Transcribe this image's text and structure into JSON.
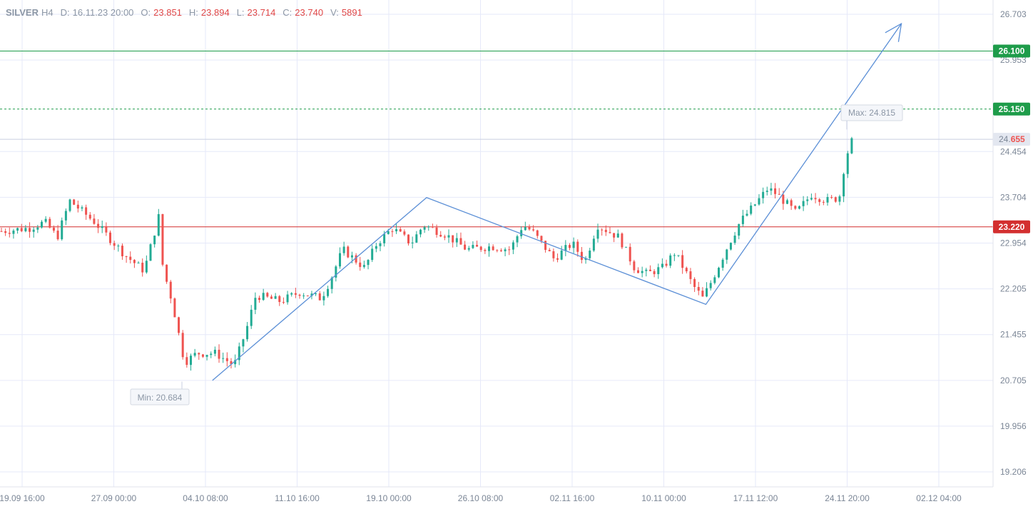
{
  "header": {
    "symbol": "SILVER",
    "timeframe": "H4",
    "date_label": "D:",
    "date": "16.11.23 20:00",
    "open_label": "O:",
    "open": "23.851",
    "high_label": "H:",
    "high": "23.894",
    "low_label": "L:",
    "low": "23.714",
    "close_label": "C:",
    "close": "23.740",
    "volume_label": "V:",
    "volume": "5891"
  },
  "colors": {
    "up": "#22ab94",
    "down": "#ef5350",
    "grid": "#e6e9f9",
    "axis_text": "#7b8696",
    "green_level": "#1e9c4a",
    "red_level": "#d32f2f",
    "drawing": "#5b8fd6"
  },
  "chart_data": {
    "type": "candlestick",
    "timeframe": "H4",
    "y_axis": {
      "range": [
        19.05,
        26.95
      ],
      "ticks": [
        "26.703",
        "25.953",
        "24.454",
        "23.704",
        "22.954",
        "22.205",
        "21.455",
        "20.705",
        "19.956",
        "19.206"
      ]
    },
    "x_axis": {
      "ticks": [
        "19.09 16:00",
        "27.09 00:00",
        "04.10 08:00",
        "11.10 16:00",
        "19.10 00:00",
        "26.10 08:00",
        "02.11 16:00",
        "10.11 00:00",
        "17.11 12:00",
        "24.11 20:00",
        "02.12 04:00"
      ],
      "total_bars": 275
    },
    "price_levels": [
      {
        "label": "26.100",
        "value": 26.1,
        "style": "solid",
        "color": "green"
      },
      {
        "label": "25.150",
        "value": 25.15,
        "style": "dashed",
        "color": "green"
      },
      {
        "label": "23.220",
        "value": 23.22,
        "style": "solid",
        "color": "red"
      }
    ],
    "current_price": {
      "prefix": "24.",
      "suffix": "655",
      "value": 24.655
    },
    "annotations": {
      "min_label": "Min: 20.684",
      "max_label": "Max: 24.815"
    },
    "drawing_path": [
      {
        "bar": 68,
        "price": 20.705
      },
      {
        "bar": 137,
        "price": 23.7
      },
      {
        "bar": 227,
        "price": 21.95
      },
      {
        "bar": 290,
        "price": 26.55
      }
    ],
    "ohlc_bars": 212,
    "anchor_points": [
      {
        "bar": 0,
        "price": 23.15
      },
      {
        "bar": 9,
        "price": 23.2
      },
      {
        "bar": 14,
        "price": 23.3
      },
      {
        "bar": 18,
        "price": 23.05
      },
      {
        "bar": 22,
        "price": 23.65
      },
      {
        "bar": 30,
        "price": 23.3
      },
      {
        "bar": 40,
        "price": 22.75
      },
      {
        "bar": 46,
        "price": 22.5
      },
      {
        "bar": 51,
        "price": 23.45
      },
      {
        "bar": 52,
        "price": 22.55
      },
      {
        "bar": 55,
        "price": 22.0
      },
      {
        "bar": 59,
        "price": 21.0
      },
      {
        "bar": 63,
        "price": 21.15
      },
      {
        "bar": 69,
        "price": 21.15
      },
      {
        "bar": 75,
        "price": 20.95
      },
      {
        "bar": 79,
        "price": 21.55
      },
      {
        "bar": 82,
        "price": 22.1
      },
      {
        "bar": 90,
        "price": 22.0
      },
      {
        "bar": 96,
        "price": 22.15
      },
      {
        "bar": 103,
        "price": 22.05
      },
      {
        "bar": 106,
        "price": 22.35
      },
      {
        "bar": 110,
        "price": 22.85
      },
      {
        "bar": 117,
        "price": 22.55
      },
      {
        "bar": 121,
        "price": 22.95
      },
      {
        "bar": 126,
        "price": 23.2
      },
      {
        "bar": 132,
        "price": 22.95
      },
      {
        "bar": 136,
        "price": 23.25
      },
      {
        "bar": 143,
        "price": 23.1
      },
      {
        "bar": 150,
        "price": 22.85
      },
      {
        "bar": 158,
        "price": 22.9
      },
      {
        "bar": 164,
        "price": 22.85
      },
      {
        "bar": 168,
        "price": 23.25
      },
      {
        "bar": 171,
        "price": 23.15
      },
      {
        "bar": 178,
        "price": 22.7
      },
      {
        "bar": 184,
        "price": 22.95
      },
      {
        "bar": 188,
        "price": 22.65
      },
      {
        "bar": 192,
        "price": 23.25
      },
      {
        "bar": 199,
        "price": 23.05
      },
      {
        "bar": 204,
        "price": 22.55
      },
      {
        "bar": 208,
        "price": 22.45
      },
      {
        "bar": 213,
        "price": 22.55
      },
      {
        "bar": 217,
        "price": 22.8
      },
      {
        "bar": 223,
        "price": 22.25
      },
      {
        "bar": 226,
        "price": 22.05
      },
      {
        "bar": 229,
        "price": 22.35
      },
      {
        "bar": 234,
        "price": 22.9
      },
      {
        "bar": 238,
        "price": 23.3
      },
      {
        "bar": 243,
        "price": 23.6
      },
      {
        "bar": 247,
        "price": 23.85
      },
      {
        "bar": 250,
        "price": 23.75
      },
      {
        "bar": 256,
        "price": 23.45
      },
      {
        "bar": 261,
        "price": 23.75
      },
      {
        "bar": 266,
        "price": 23.65
      },
      {
        "bar": 270,
        "price": 23.7
      },
      {
        "bar": 272,
        "price": 24.35
      },
      {
        "bar": 274,
        "price": 24.62
      }
    ]
  }
}
